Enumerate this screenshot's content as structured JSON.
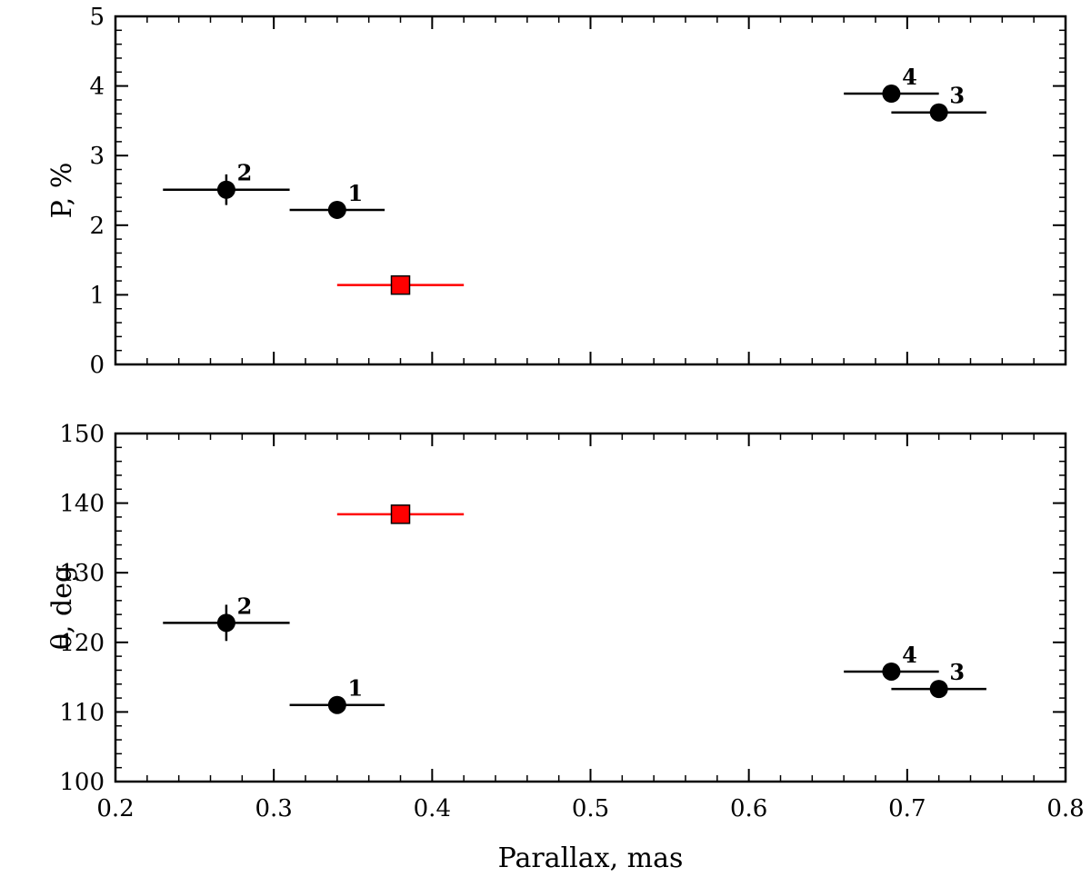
{
  "chart_data": [
    {
      "type": "scatter",
      "panel": "top",
      "ylabel": "P, %",
      "xlabel": "",
      "xlim": [
        0.2,
        0.8
      ],
      "ylim": [
        0,
        5
      ],
      "x_ticks": [
        "0.2",
        "0.3",
        "0.4",
        "0.5",
        "0.6",
        "0.7",
        "0.8"
      ],
      "y_ticks": [
        "0",
        "1",
        "2",
        "3",
        "4",
        "5"
      ],
      "x_tick_values": [
        0.2,
        0.3,
        0.4,
        0.5,
        0.6,
        0.7,
        0.8
      ],
      "y_tick_values": [
        0,
        1,
        2,
        3,
        4,
        5
      ],
      "x_tick_labels_visible": false,
      "grid": false,
      "points": [
        {
          "label": "1",
          "x": 0.34,
          "y": 2.22,
          "xerr": 0.03,
          "yerr": 0.05,
          "marker": "circle",
          "color": "#000000"
        },
        {
          "label": "2",
          "x": 0.27,
          "y": 2.51,
          "xerr": 0.04,
          "yerr": 0.22,
          "marker": "circle",
          "color": "#000000"
        },
        {
          "label": "3",
          "x": 0.72,
          "y": 3.62,
          "xerr": 0.03,
          "yerr": 0.05,
          "marker": "circle",
          "color": "#000000"
        },
        {
          "label": "4",
          "x": 0.69,
          "y": 3.89,
          "xerr": 0.03,
          "yerr": 0.05,
          "marker": "circle",
          "color": "#000000"
        },
        {
          "label": "",
          "x": 0.38,
          "y": 1.14,
          "xerr": 0.04,
          "yerr": 0.03,
          "marker": "square",
          "color": "#ff0000"
        }
      ]
    },
    {
      "type": "scatter",
      "panel": "bottom",
      "ylabel": "θ, deg",
      "xlabel": "Parallax, mas",
      "xlim": [
        0.2,
        0.8
      ],
      "ylim": [
        100,
        150
      ],
      "x_ticks": [
        "0.2",
        "0.3",
        "0.4",
        "0.5",
        "0.6",
        "0.7",
        "0.8"
      ],
      "y_ticks": [
        "100",
        "110",
        "120",
        "130",
        "140",
        "150"
      ],
      "x_tick_values": [
        0.2,
        0.3,
        0.4,
        0.5,
        0.6,
        0.7,
        0.8
      ],
      "y_tick_values": [
        100,
        110,
        120,
        130,
        140,
        150
      ],
      "x_tick_labels_visible": true,
      "grid": false,
      "points": [
        {
          "label": "1",
          "x": 0.34,
          "y": 111.0,
          "xerr": 0.03,
          "yerr": 0.5,
          "marker": "circle",
          "color": "#000000"
        },
        {
          "label": "2",
          "x": 0.27,
          "y": 122.8,
          "xerr": 0.04,
          "yerr": 2.6,
          "marker": "circle",
          "color": "#000000"
        },
        {
          "label": "3",
          "x": 0.72,
          "y": 113.3,
          "xerr": 0.03,
          "yerr": 0.5,
          "marker": "circle",
          "color": "#000000"
        },
        {
          "label": "4",
          "x": 0.69,
          "y": 115.8,
          "xerr": 0.03,
          "yerr": 0.5,
          "marker": "circle",
          "color": "#000000"
        },
        {
          "label": "",
          "x": 0.38,
          "y": 138.4,
          "xerr": 0.04,
          "yerr": 0.5,
          "marker": "square",
          "color": "#ff0000"
        }
      ]
    }
  ]
}
